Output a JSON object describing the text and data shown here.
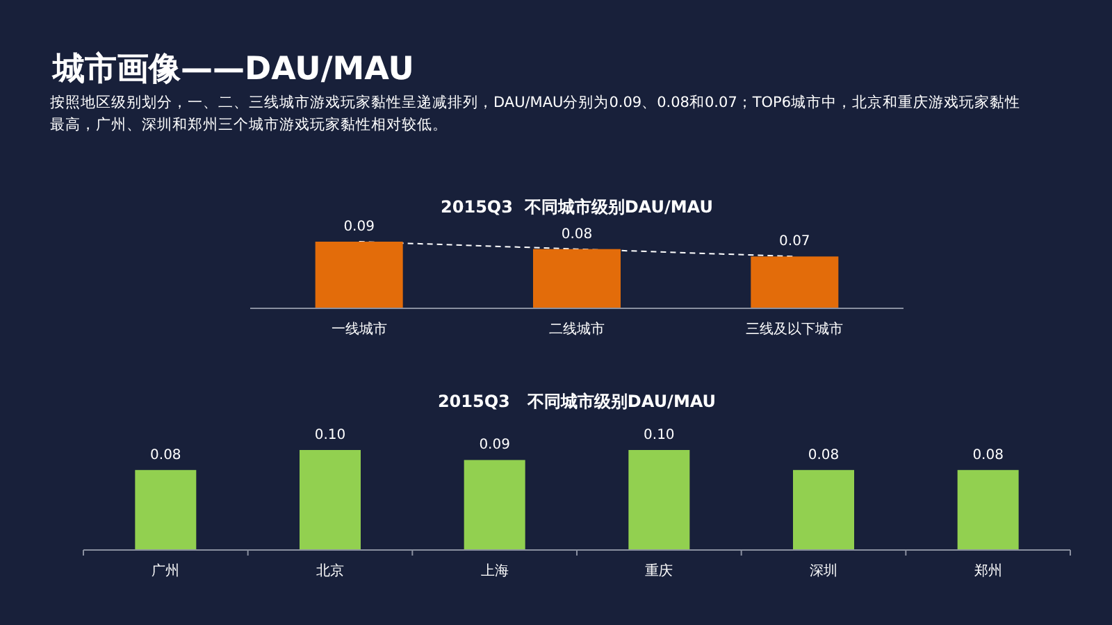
{
  "chart_data": [
    {
      "type": "bar",
      "title": "2015Q3  不同城市级别DAU/MAU",
      "annotations": [
        "城市画像——DAU/MAU",
        "按照地区级别划分，一、二、三线城市游戏玩家黏性呈递减排列，DAU/MAU分别为0.09、0.08和0.07；TOP6城市中，北京和重庆游戏玩家黏性最高，广州、深圳和郑州三个城市游戏玩家黏性相对较低。"
      ],
      "categories": [
        "一线城市",
        "二线城市",
        "三线及以下城市"
      ],
      "series": [
        {
          "color": "#e36c0a",
          "values": [
            0.09,
            0.08,
            0.07
          ],
          "value_labels": [
            "0.09",
            "0.08",
            "0.07"
          ]
        },
        {
          "type": "line",
          "color": "#ffffff",
          "line_style": "dashed",
          "values": [
            0.09,
            0.08,
            0.07
          ]
        }
      ]
    },
    {
      "type": "bar",
      "title": "2015Q3   不同城市级别DAU/MAU",
      "categories": [
        "广州",
        "北京",
        "上海",
        "重庆",
        "深圳",
        "郑州"
      ],
      "series": [
        {
          "color": "#92d050",
          "values": [
            0.08,
            0.1,
            0.09,
            0.1,
            0.08,
            0.08
          ],
          "value_labels": [
            "0.08",
            "0.10",
            "0.09",
            "0.10",
            "0.08",
            "0.08"
          ]
        }
      ]
    }
  ]
}
